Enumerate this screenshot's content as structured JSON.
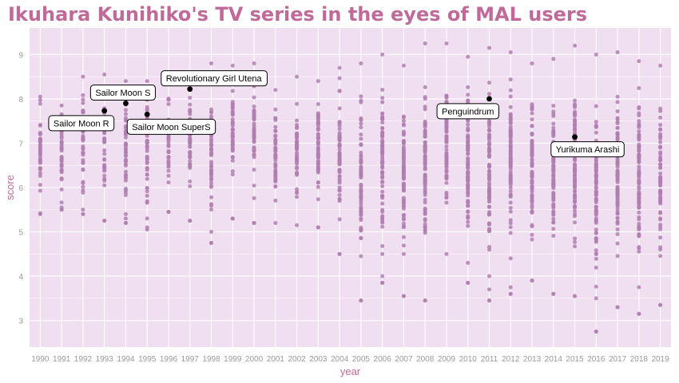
{
  "chart_data": {
    "type": "scatter",
    "title": "Ikuhara Kunihiko's TV series in the eyes of MAL users",
    "xlabel": "year",
    "ylabel": "score",
    "xlim": [
      1989.5,
      2019.5
    ],
    "ylim": [
      2.4,
      9.6
    ],
    "x_ticks": [
      1990,
      1991,
      1992,
      1993,
      1994,
      1995,
      1996,
      1997,
      1998,
      1999,
      2000,
      2001,
      2002,
      2003,
      2004,
      2005,
      2006,
      2007,
      2008,
      2009,
      2010,
      2011,
      2012,
      2013,
      2014,
      2015,
      2016,
      2017,
      2018,
      2019
    ],
    "y_ticks": [
      3,
      4,
      5,
      6,
      7,
      8,
      9
    ],
    "colors": {
      "panel": "#f0dff0",
      "grid": "#ffffff",
      "point": "#b07fb0",
      "highlight": "#000000",
      "title": "#c06a9a"
    },
    "year_points": [
      {
        "year": 1990,
        "min": 5.4,
        "max": 8.05,
        "n": 40,
        "outliers": [
          5.42
        ]
      },
      {
        "year": 1991,
        "min": 5.5,
        "max": 7.85,
        "n": 38,
        "outliers": [
          5.5,
          5.55
        ]
      },
      {
        "year": 1992,
        "min": 5.4,
        "max": 8.5,
        "n": 44,
        "outliers": [
          5.4,
          5.5
        ]
      },
      {
        "year": 1993,
        "min": 5.25,
        "max": 8.55,
        "n": 40,
        "outliers": [
          5.25,
          6.05
        ]
      },
      {
        "year": 1994,
        "min": 5.2,
        "max": 8.4,
        "n": 42,
        "outliers": [
          5.2,
          5.3,
          5.4
        ]
      },
      {
        "year": 1995,
        "min": 5.05,
        "max": 8.4,
        "n": 40,
        "outliers": [
          5.1,
          5.3
        ]
      },
      {
        "year": 1996,
        "min": 5.45,
        "max": 8.45,
        "n": 42,
        "outliers": [
          5.45
        ]
      },
      {
        "year": 1997,
        "min": 5.25,
        "max": 8.55,
        "n": 44,
        "outliers": [
          5.25
        ]
      },
      {
        "year": 1998,
        "min": 4.75,
        "max": 8.8,
        "n": 50,
        "outliers": [
          4.75,
          5.0
        ]
      },
      {
        "year": 1999,
        "min": 5.3,
        "max": 8.75,
        "n": 46,
        "outliers": [
          5.3
        ]
      },
      {
        "year": 2000,
        "min": 5.2,
        "max": 8.8,
        "n": 46,
        "outliers": [
          5.2
        ]
      },
      {
        "year": 2001,
        "min": 5.2,
        "max": 8.2,
        "n": 48,
        "outliers": []
      },
      {
        "year": 2002,
        "min": 5.15,
        "max": 8.5,
        "n": 55,
        "outliers": []
      },
      {
        "year": 2003,
        "min": 5.1,
        "max": 8.4,
        "n": 58,
        "outliers": [
          5.1
        ]
      },
      {
        "year": 2004,
        "min": 4.5,
        "max": 8.7,
        "n": 70,
        "outliers": [
          4.5
        ]
      },
      {
        "year": 2005,
        "min": 3.45,
        "max": 8.8,
        "n": 74,
        "outliers": [
          3.45,
          4.45
        ]
      },
      {
        "year": 2006,
        "min": 3.85,
        "max": 9.0,
        "n": 80,
        "outliers": [
          3.85,
          4.0,
          4.5
        ]
      },
      {
        "year": 2007,
        "min": 3.55,
        "max": 8.75,
        "n": 80,
        "outliers": [
          3.55,
          4.5
        ]
      },
      {
        "year": 2008,
        "min": 3.45,
        "max": 9.25,
        "n": 85,
        "outliers": [
          3.45
        ]
      },
      {
        "year": 2009,
        "min": 4.5,
        "max": 9.25,
        "n": 84,
        "outliers": []
      },
      {
        "year": 2010,
        "min": 3.85,
        "max": 8.95,
        "n": 84,
        "outliers": [
          3.85,
          4.3
        ]
      },
      {
        "year": 2011,
        "min": 3.45,
        "max": 9.15,
        "n": 84,
        "outliers": [
          3.45,
          3.7,
          4.0
        ]
      },
      {
        "year": 2012,
        "min": 3.6,
        "max": 9.05,
        "n": 86,
        "outliers": [
          3.6,
          3.75,
          4.4
        ]
      },
      {
        "year": 2013,
        "min": 3.9,
        "max": 8.8,
        "n": 88,
        "outliers": [
          3.9
        ]
      },
      {
        "year": 2014,
        "min": 3.6,
        "max": 8.9,
        "n": 90,
        "outliers": [
          3.6
        ]
      },
      {
        "year": 2015,
        "min": 3.55,
        "max": 9.2,
        "n": 90,
        "outliers": [
          3.55
        ]
      },
      {
        "year": 2016,
        "min": 2.75,
        "max": 9.0,
        "n": 88,
        "outliers": [
          2.75,
          3.5
        ]
      },
      {
        "year": 2017,
        "min": 3.3,
        "max": 9.05,
        "n": 90,
        "outliers": [
          3.3
        ]
      },
      {
        "year": 2018,
        "min": 3.15,
        "max": 8.85,
        "n": 88,
        "outliers": [
          3.15,
          3.75
        ]
      },
      {
        "year": 2019,
        "min": 3.35,
        "max": 8.75,
        "n": 60,
        "outliers": [
          3.35,
          4.6
        ]
      }
    ],
    "highlighted": [
      {
        "name": "Sailor Moon R",
        "year": 1993,
        "score": 7.73,
        "label_anchor": "below-left"
      },
      {
        "name": "Sailor Moon S",
        "year": 1994,
        "score": 7.9,
        "label_anchor": "above"
      },
      {
        "name": "Sailor Moon SuperS",
        "year": 1995,
        "score": 7.65,
        "label_anchor": "below-right"
      },
      {
        "name": "Revolutionary Girl Utena",
        "year": 1997,
        "score": 8.22,
        "label_anchor": "above-right"
      },
      {
        "name": "Penguindrum",
        "year": 2011,
        "score": 8.0,
        "label_anchor": "below-left"
      },
      {
        "name": "Yurikuma Arashi",
        "year": 2015,
        "score": 7.14,
        "label_anchor": "below"
      }
    ]
  }
}
